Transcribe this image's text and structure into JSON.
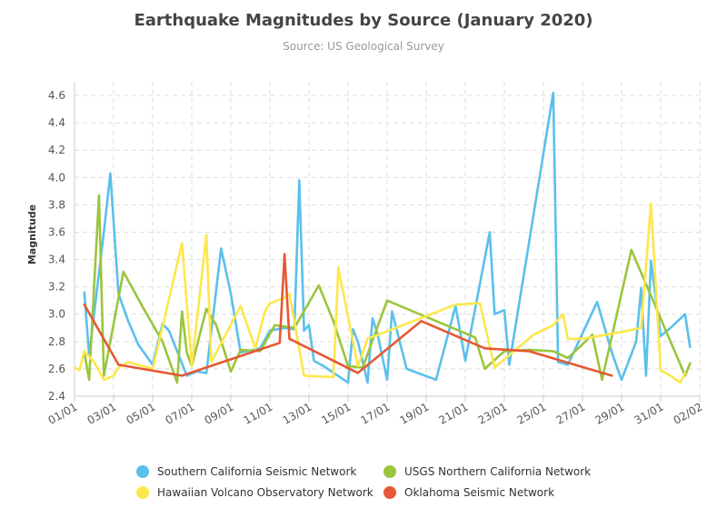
{
  "chart_data": {
    "type": "line",
    "title": "Earthquake Magnitudes by Source (January 2020)",
    "subtitle": "Source: US Geological Survey",
    "xlabel": "",
    "ylabel": "Magnitude",
    "x_type": "date",
    "xlim": [
      "2020-01-01",
      "2020-02-02"
    ],
    "ylim": [
      2.4,
      4.7
    ],
    "x_ticks": [
      {
        "date": "2020-01-01",
        "label": "01/01"
      },
      {
        "date": "2020-01-03",
        "label": "03/01"
      },
      {
        "date": "2020-01-05",
        "label": "05/01"
      },
      {
        "date": "2020-01-07",
        "label": "07/01"
      },
      {
        "date": "2020-01-09",
        "label": "09/01"
      },
      {
        "date": "2020-01-11",
        "label": "11/01"
      },
      {
        "date": "2020-01-13",
        "label": "13/01"
      },
      {
        "date": "2020-01-15",
        "label": "15/01"
      },
      {
        "date": "2020-01-17",
        "label": "17/01"
      },
      {
        "date": "2020-01-19",
        "label": "19/01"
      },
      {
        "date": "2020-01-21",
        "label": "21/01"
      },
      {
        "date": "2020-01-23",
        "label": "23/01"
      },
      {
        "date": "2020-01-25",
        "label": "25/01"
      },
      {
        "date": "2020-01-27",
        "label": "27/01"
      },
      {
        "date": "2020-01-29",
        "label": "29/01"
      },
      {
        "date": "2020-01-31",
        "label": "31/01"
      },
      {
        "date": "2020-02-02",
        "label": "02/02"
      }
    ],
    "y_ticks": [
      "2.4",
      "2.6",
      "2.8",
      "3.0",
      "3.2",
      "3.4",
      "3.6",
      "3.8",
      "4.0",
      "4.2",
      "4.4",
      "4.6"
    ],
    "grid": true,
    "legend_position": "bottom",
    "series": [
      {
        "name": "Southern California Seismic Network",
        "color": "#5bc0eb",
        "points": [
          [
            "2020-01-01T12:00",
            3.16
          ],
          [
            "2020-01-01T18:00",
            2.7
          ],
          [
            "2020-01-02T12:00",
            3.6
          ],
          [
            "2020-01-02T20:00",
            4.03
          ],
          [
            "2020-01-03T06:00",
            3.15
          ],
          [
            "2020-01-03T18:00",
            2.95
          ],
          [
            "2020-01-04T06:00",
            2.78
          ],
          [
            "2020-01-05T00:00",
            2.63
          ],
          [
            "2020-01-05T12:00",
            2.93
          ],
          [
            "2020-01-05T20:00",
            2.88
          ],
          [
            "2020-01-06T06:00",
            2.73
          ],
          [
            "2020-01-06T18:00",
            2.55
          ],
          [
            "2020-01-07T06:00",
            2.58
          ],
          [
            "2020-01-07T18:00",
            2.57
          ],
          [
            "2020-01-08T12:00",
            3.48
          ],
          [
            "2020-01-09T00:00",
            3.15
          ],
          [
            "2020-01-09T12:00",
            2.72
          ],
          [
            "2020-01-10T12:00",
            2.75
          ],
          [
            "2020-01-11T00:00",
            2.88
          ],
          [
            "2020-01-11T18:00",
            2.9
          ],
          [
            "2020-01-12T06:00",
            2.89
          ],
          [
            "2020-01-12T12:00",
            3.98
          ],
          [
            "2020-01-12T18:00",
            2.88
          ],
          [
            "2020-01-13T00:00",
            2.92
          ],
          [
            "2020-01-13T06:00",
            2.66
          ],
          [
            "2020-01-13T18:00",
            2.62
          ],
          [
            "2020-01-15T00:00",
            2.5
          ],
          [
            "2020-01-15T06:00",
            2.89
          ],
          [
            "2020-01-15T12:00",
            2.8
          ],
          [
            "2020-01-16T00:00",
            2.5
          ],
          [
            "2020-01-16T06:00",
            2.97
          ],
          [
            "2020-01-16T12:00",
            2.86
          ],
          [
            "2020-01-17T00:00",
            2.52
          ],
          [
            "2020-01-17T06:00",
            3.02
          ],
          [
            "2020-01-18T00:00",
            2.6
          ],
          [
            "2020-01-19T12:00",
            2.52
          ],
          [
            "2020-01-20T12:00",
            3.06
          ],
          [
            "2020-01-21T00:00",
            2.66
          ],
          [
            "2020-01-22T06:00",
            3.6
          ],
          [
            "2020-01-22T12:00",
            3.0
          ],
          [
            "2020-01-23T00:00",
            3.03
          ],
          [
            "2020-01-23T06:00",
            2.63
          ],
          [
            "2020-01-25T12:00",
            4.62
          ],
          [
            "2020-01-25T18:00",
            2.65
          ],
          [
            "2020-01-26T06:00",
            2.63
          ],
          [
            "2020-01-27T18:00",
            3.09
          ],
          [
            "2020-01-28T12:00",
            2.72
          ],
          [
            "2020-01-29T00:00",
            2.52
          ],
          [
            "2020-01-29T18:00",
            2.8
          ],
          [
            "2020-01-30T00:00",
            3.19
          ],
          [
            "2020-01-30T06:00",
            2.55
          ],
          [
            "2020-01-30T12:00",
            3.39
          ],
          [
            "2020-01-31T00:00",
            2.84
          ],
          [
            "2020-01-31T12:00",
            2.9
          ],
          [
            "2020-02-01T06:00",
            3.0
          ],
          [
            "2020-02-01T12:00",
            2.76
          ]
        ]
      },
      {
        "name": "USGS Northern California Network",
        "color": "#9bc53d",
        "points": [
          [
            "2020-01-01T12:00",
            2.72
          ],
          [
            "2020-01-01T18:00",
            2.52
          ],
          [
            "2020-01-02T06:00",
            3.87
          ],
          [
            "2020-01-02T12:00",
            2.55
          ],
          [
            "2020-01-03T12:00",
            3.31
          ],
          [
            "2020-01-04T12:00",
            3.05
          ],
          [
            "2020-01-05T12:00",
            2.8
          ],
          [
            "2020-01-06T06:00",
            2.5
          ],
          [
            "2020-01-06T12:00",
            3.02
          ],
          [
            "2020-01-06T18:00",
            2.72
          ],
          [
            "2020-01-07T00:00",
            2.62
          ],
          [
            "2020-01-07T18:00",
            3.04
          ],
          [
            "2020-01-08T06:00",
            2.92
          ],
          [
            "2020-01-09T00:00",
            2.58
          ],
          [
            "2020-01-09T12:00",
            2.74
          ],
          [
            "2020-01-10T12:00",
            2.73
          ],
          [
            "2020-01-11T06:00",
            2.92
          ],
          [
            "2020-01-12T06:00",
            2.9
          ],
          [
            "2020-01-13T12:00",
            3.21
          ],
          [
            "2020-01-14T06:00",
            2.95
          ],
          [
            "2020-01-15T00:00",
            2.62
          ],
          [
            "2020-01-15T18:00",
            2.61
          ],
          [
            "2020-01-17T00:00",
            3.1
          ],
          [
            "2020-01-21T12:00",
            2.83
          ],
          [
            "2020-01-22T00:00",
            2.6
          ],
          [
            "2020-01-23T00:00",
            2.73
          ],
          [
            "2020-01-24T06:00",
            2.74
          ],
          [
            "2020-01-25T12:00",
            2.73
          ],
          [
            "2020-01-26T06:00",
            2.68
          ],
          [
            "2020-01-27T00:00",
            2.78
          ],
          [
            "2020-01-27T12:00",
            2.85
          ],
          [
            "2020-01-28T00:00",
            2.52
          ],
          [
            "2020-01-29T12:00",
            3.47
          ],
          [
            "2020-02-01T06:00",
            2.55
          ],
          [
            "2020-02-01T12:00",
            2.64
          ]
        ]
      },
      {
        "name": "Hawaiian Volcano Observatory Network",
        "color": "#fde74c",
        "points": [
          [
            "2020-01-01T00:00",
            2.61
          ],
          [
            "2020-01-01T06:00",
            2.59
          ],
          [
            "2020-01-01T12:00",
            2.73
          ],
          [
            "2020-01-02T00:00",
            2.65
          ],
          [
            "2020-01-02T12:00",
            2.52
          ],
          [
            "2020-01-03T00:00",
            2.55
          ],
          [
            "2020-01-03T06:00",
            2.61
          ],
          [
            "2020-01-03T18:00",
            2.65
          ],
          [
            "2020-01-04T12:00",
            2.62
          ],
          [
            "2020-01-05T00:00",
            2.6
          ],
          [
            "2020-01-06T12:00",
            3.52
          ],
          [
            "2020-01-07T00:00",
            2.62
          ],
          [
            "2020-01-07T18:00",
            3.58
          ],
          [
            "2020-01-08T00:00",
            2.65
          ],
          [
            "2020-01-09T12:00",
            3.06
          ],
          [
            "2020-01-10T06:00",
            2.75
          ],
          [
            "2020-01-10T18:00",
            3.02
          ],
          [
            "2020-01-11T00:00",
            3.08
          ],
          [
            "2020-01-11T18:00",
            3.12
          ],
          [
            "2020-01-12T00:00",
            3.15
          ],
          [
            "2020-01-12T18:00",
            2.55
          ],
          [
            "2020-01-14T06:00",
            2.54
          ],
          [
            "2020-01-14T12:00",
            3.34
          ],
          [
            "2020-01-15T12:00",
            2.62
          ],
          [
            "2020-01-16T00:00",
            2.82
          ],
          [
            "2020-01-18T00:00",
            2.93
          ],
          [
            "2020-01-19T06:00",
            3.0
          ],
          [
            "2020-01-20T12:00",
            3.07
          ],
          [
            "2020-01-21T18:00",
            3.08
          ],
          [
            "2020-01-22T12:00",
            2.61
          ],
          [
            "2020-01-24T12:00",
            2.85
          ],
          [
            "2020-01-25T12:00",
            2.92
          ],
          [
            "2020-01-26T00:00",
            3.0
          ],
          [
            "2020-01-26T06:00",
            2.82
          ],
          [
            "2020-01-27T00:00",
            2.82
          ],
          [
            "2020-01-29T00:00",
            2.87
          ],
          [
            "2020-01-30T00:00",
            2.9
          ],
          [
            "2020-01-30T12:00",
            3.81
          ],
          [
            "2020-01-31T00:00",
            2.59
          ],
          [
            "2020-01-31T12:00",
            2.55
          ],
          [
            "2020-02-01T00:00",
            2.5
          ],
          [
            "2020-02-01T06:00",
            2.57
          ]
        ]
      },
      {
        "name": "Oklahoma Seismic Network",
        "color": "#e55934",
        "points": [
          [
            "2020-01-01T12:00",
            3.07
          ],
          [
            "2020-01-03T06:00",
            2.63
          ],
          [
            "2020-01-06T12:00",
            2.55
          ],
          [
            "2020-01-11T12:00",
            2.79
          ],
          [
            "2020-01-11T18:00",
            3.44
          ],
          [
            "2020-01-12T00:00",
            2.82
          ],
          [
            "2020-01-15T12:00",
            2.57
          ],
          [
            "2020-01-18T18:00",
            2.95
          ],
          [
            "2020-01-22T00:00",
            2.75
          ],
          [
            "2020-01-24T06:00",
            2.73
          ],
          [
            "2020-01-28T12:00",
            2.55
          ]
        ]
      }
    ]
  }
}
